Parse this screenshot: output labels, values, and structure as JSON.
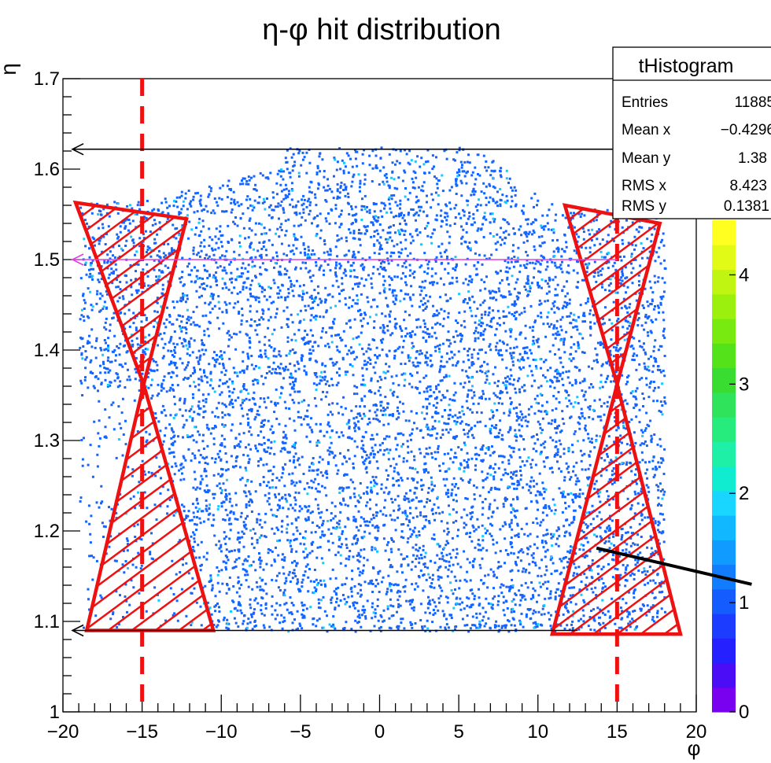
{
  "chart_data": {
    "type": "heatmap",
    "title": "η-φ hit distribution",
    "xlabel": "φ",
    "ylabel": "η",
    "xlim": [
      -20,
      20
    ],
    "ylim": [
      1.0,
      1.7
    ],
    "x_ticks": [
      "−20",
      "−15",
      "−10",
      "−5",
      "0",
      "5",
      "10",
      "15",
      "20"
    ],
    "y_ticks": [
      "1",
      "1.1",
      "1.2",
      "1.3",
      "1.4",
      "1.5",
      "1.6",
      "1.7"
    ],
    "z_ticks": [
      "0",
      "1",
      "2",
      "3",
      "4"
    ],
    "zlim": [
      0,
      4.5
    ],
    "colorbar_colors": [
      "#7a00f0",
      "#4b0df5",
      "#2420ff",
      "#1c3cff",
      "#155cff",
      "#127cff",
      "#0f9bff",
      "#12b8ff",
      "#18d6ff",
      "#10eccf",
      "#1ff0a8",
      "#26ec7e",
      "#2fe35a",
      "#39dc30",
      "#54e21a",
      "#78ea10",
      "#9cf00e",
      "#c0f511",
      "#e2fb16",
      "#ffff20"
    ],
    "stats_box": {
      "title": "tHistogram",
      "rows": [
        {
          "label": "Entries",
          "value": "11885"
        },
        {
          "label": "Mean x",
          "value": "−0.4296"
        },
        {
          "label": "Mean y",
          "value": "1.38"
        },
        {
          "label": "RMS x",
          "value": "8.423"
        },
        {
          "label": "RMS y",
          "value": "0.1381"
        }
      ]
    },
    "overlays": {
      "dashed_lines_phi": [
        -15,
        15
      ],
      "hatched_regions": [
        {
          "side": "left",
          "upper": [
            [
              -19.2,
              1.563
            ],
            [
              -12.2,
              1.545
            ],
            [
              -14.9,
              1.362
            ]
          ],
          "lower": [
            [
              -14.9,
              1.362
            ],
            [
              -18.5,
              1.09
            ],
            [
              -10.5,
              1.09
            ]
          ]
        },
        {
          "side": "right",
          "upper": [
            [
              11.7,
              1.56
            ],
            [
              17.7,
              1.54
            ],
            [
              15.0,
              1.362
            ]
          ],
          "lower": [
            [
              15.0,
              1.362
            ],
            [
              10.9,
              1.086
            ],
            [
              19.0,
              1.086
            ]
          ]
        }
      ],
      "arrows": [
        {
          "eta": 1.622,
          "from_phi": 15.3,
          "to_phi": -19.4,
          "color": "#000000"
        },
        {
          "eta": 1.5,
          "from_phi": 15.0,
          "to_phi": -19.4,
          "color": "#e040e0"
        },
        {
          "eta": 1.09,
          "from_phi": 12.5,
          "to_phi": -19.4,
          "color": "#000000"
        }
      ],
      "pointer_line": {
        "from_phi": 13.7,
        "from_eta": 1.181,
        "to_phi": 23.5,
        "to_eta": 1.141
      }
    },
    "grid": false,
    "colors": {
      "dot_main": "#1464ff",
      "dot_light": "#17c8ff",
      "overlay_red": "#ee1111"
    }
  }
}
